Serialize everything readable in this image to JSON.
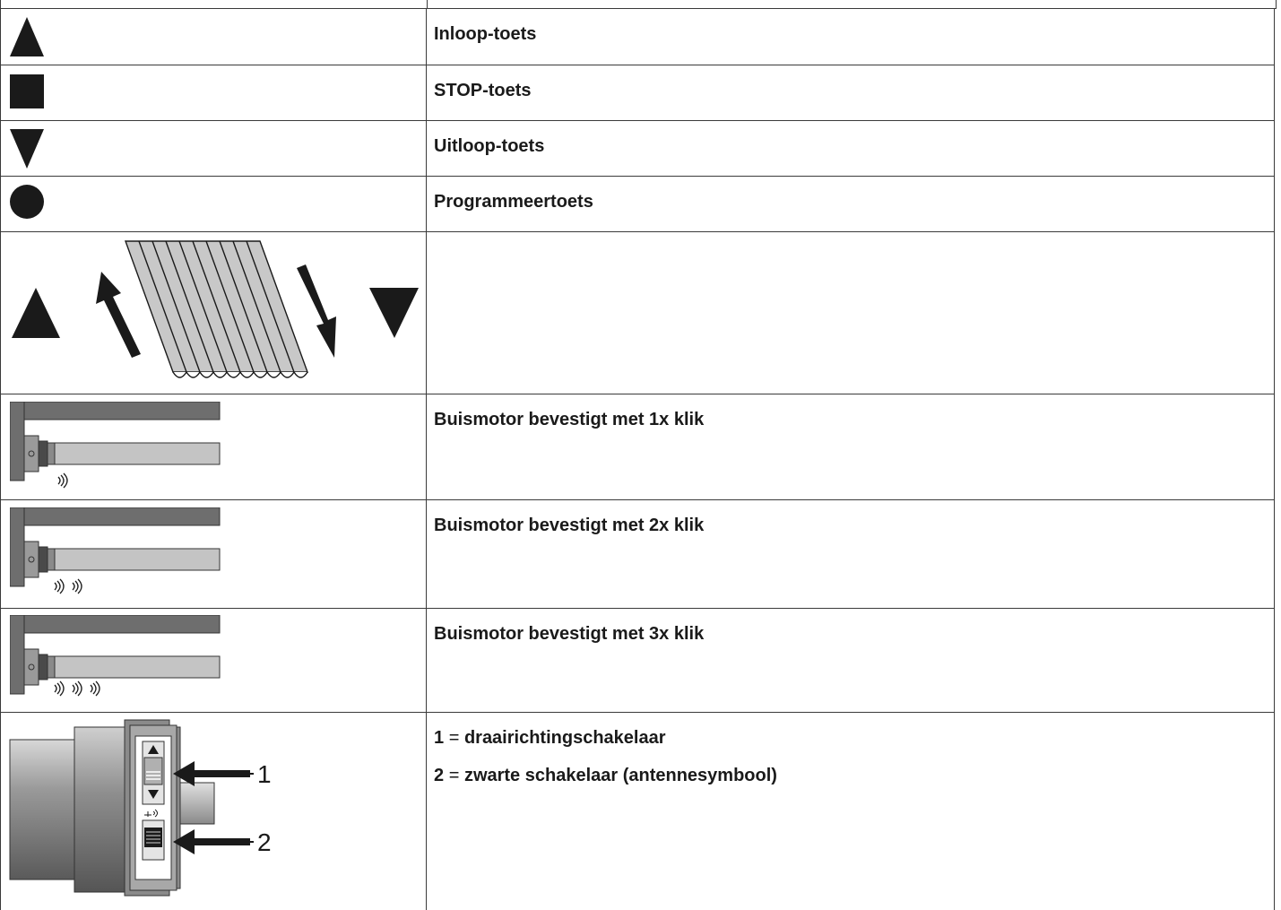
{
  "rows": [
    {
      "icon": "triangle-up-icon",
      "description": "Inloop-toets"
    },
    {
      "icon": "square-stop-icon",
      "description": "STOP-toets"
    },
    {
      "icon": "triangle-down-icon",
      "description": "Uitloop-toets"
    },
    {
      "icon": "circle-program-icon",
      "description": "Programmeertoets"
    },
    {
      "icon": "blind-up-down-illustration",
      "description": ""
    },
    {
      "icon": "tube-motor-1-click-illustration",
      "description": "Buismotor bevestigt met 1x klik"
    },
    {
      "icon": "tube-motor-2-click-illustration",
      "description": "Buismotor bevestigt met 2x klik"
    },
    {
      "icon": "tube-motor-3-click-illustration",
      "description": "Buismotor bevestigt met 3x klik"
    },
    {
      "icon": "motor-head-switches-illustration",
      "legend_lines": [
        {
          "number": "1",
          "equals": "=",
          "text": "draairichtingschakelaar"
        },
        {
          "number": "2",
          "equals": "=",
          "text": "zwarte schakelaar (antennesymbool)"
        }
      ],
      "callouts": [
        "1",
        "2"
      ]
    }
  ],
  "colors": {
    "icon_fill": "#1a1a1a",
    "motor_dark": "#6e6e6e",
    "motor_light": "#c4c4c4",
    "rule": "#3a3a3a"
  }
}
